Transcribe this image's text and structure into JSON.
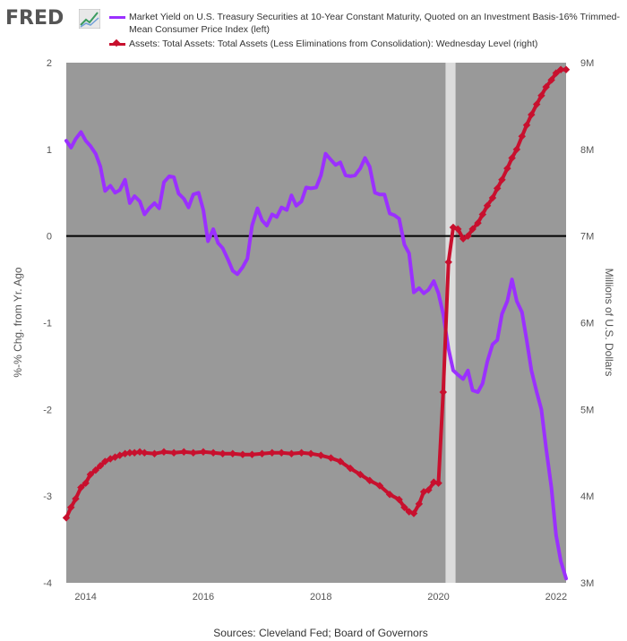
{
  "branding": {
    "logo_text": "FRED"
  },
  "legend": [
    {
      "label": "Market Yield on U.S. Treasury Securities at 10-Year Constant Maturity, Quoted on an Investment Basis-16% Trimmed-Mean Consumer Price Index (left)",
      "color": "#9b30ff"
    },
    {
      "label": "Assets: Total Assets: Total Assets (Less Eliminations from Consolidation): Wednesday Level (right)",
      "color": "#c8102e"
    }
  ],
  "source_text": "Sources: Cleveland Fed; Board of Governors",
  "chart_data": {
    "type": "line",
    "title": "",
    "left_axis": {
      "label": "%-% Chg. from Yr. Ago",
      "ticks": [
        "2",
        "1",
        "0",
        "-1",
        "-2",
        "-3",
        "-4"
      ],
      "ylim": [
        -4,
        2
      ]
    },
    "right_axis": {
      "label": "Millions of U.S. Dollars",
      "ticks": [
        "9M",
        "8M",
        "7M",
        "6M",
        "5M",
        "4M",
        "3M"
      ],
      "ylim": [
        3,
        9
      ]
    },
    "x_ticks": [
      "2014",
      "2016",
      "2018",
      "2020",
      "2022"
    ],
    "x_tick_years": [
      2014,
      2016,
      2018,
      2020,
      2022
    ],
    "xlim": [
      2013.67,
      2022.17
    ],
    "recession_shading": [
      2020.12,
      2020.29
    ],
    "background": "#999999",
    "grid": false,
    "zero_line": 0,
    "series": [
      {
        "name": "Market Yield on U.S. Treasury Securities at 10-Year Constant Maturity, Quoted on an Investment Basis-16% Trimmed-Mean Consumer Price Index (left)",
        "axis": "left",
        "color": "#9b30ff",
        "x": [
          2013.67,
          2013.75,
          2013.83,
          2013.92,
          2014.0,
          2014.08,
          2014.17,
          2014.25,
          2014.33,
          2014.42,
          2014.5,
          2014.58,
          2014.67,
          2014.75,
          2014.83,
          2014.92,
          2015.0,
          2015.08,
          2015.17,
          2015.25,
          2015.33,
          2015.42,
          2015.5,
          2015.58,
          2015.67,
          2015.75,
          2015.83,
          2015.92,
          2016.0,
          2016.08,
          2016.17,
          2016.25,
          2016.33,
          2016.42,
          2016.5,
          2016.58,
          2016.67,
          2016.75,
          2016.83,
          2016.92,
          2017.0,
          2017.08,
          2017.17,
          2017.25,
          2017.33,
          2017.42,
          2017.5,
          2017.58,
          2017.67,
          2017.75,
          2017.83,
          2017.92,
          2018.0,
          2018.08,
          2018.17,
          2018.25,
          2018.33,
          2018.42,
          2018.5,
          2018.58,
          2018.67,
          2018.75,
          2018.83,
          2018.92,
          2019.0,
          2019.08,
          2019.17,
          2019.25,
          2019.33,
          2019.42,
          2019.5,
          2019.58,
          2019.67,
          2019.75,
          2019.83,
          2019.92,
          2020.0,
          2020.08,
          2020.17,
          2020.25,
          2020.33,
          2020.42,
          2020.5,
          2020.58,
          2020.67,
          2020.75,
          2020.83,
          2020.92,
          2021.0,
          2021.08,
          2021.17,
          2021.25,
          2021.33,
          2021.42,
          2021.5,
          2021.58,
          2021.67,
          2021.75,
          2021.83,
          2021.92,
          2022.0,
          2022.08,
          2022.17
        ],
        "y": [
          1.1,
          1.02,
          1.12,
          1.2,
          1.1,
          1.04,
          0.95,
          0.8,
          0.52,
          0.58,
          0.5,
          0.53,
          0.65,
          0.38,
          0.46,
          0.4,
          0.25,
          0.32,
          0.38,
          0.32,
          0.62,
          0.69,
          0.68,
          0.49,
          0.43,
          0.33,
          0.48,
          0.5,
          0.3,
          -0.06,
          0.08,
          -0.08,
          -0.14,
          -0.27,
          -0.4,
          -0.44,
          -0.36,
          -0.26,
          0.12,
          0.32,
          0.18,
          0.12,
          0.25,
          0.22,
          0.33,
          0.3,
          0.47,
          0.35,
          0.4,
          0.56,
          0.55,
          0.56,
          0.7,
          0.95,
          0.88,
          0.82,
          0.85,
          0.7,
          0.69,
          0.7,
          0.78,
          0.9,
          0.8,
          0.5,
          0.48,
          0.48,
          0.26,
          0.24,
          0.2,
          -0.1,
          -0.2,
          -0.65,
          -0.6,
          -0.66,
          -0.62,
          -0.52,
          -0.66,
          -0.9,
          -1.3,
          -1.55,
          -1.6,
          -1.65,
          -1.55,
          -1.78,
          -1.8,
          -1.7,
          -1.45,
          -1.25,
          -1.2,
          -0.9,
          -0.75,
          -0.5,
          -0.75,
          -0.88,
          -1.2,
          -1.55,
          -1.8,
          -2.0,
          -2.45,
          -2.9,
          -3.45,
          -3.75,
          -3.95
        ]
      },
      {
        "name": "Assets: Total Assets: Total Assets (Less Eliminations from Consolidation): Wednesday Level (right)",
        "axis": "right",
        "color": "#c8102e",
        "x": [
          2013.67,
          2013.75,
          2013.83,
          2013.92,
          2014.0,
          2014.08,
          2014.17,
          2014.25,
          2014.33,
          2014.42,
          2014.5,
          2014.58,
          2014.67,
          2014.75,
          2014.83,
          2014.92,
          2015.0,
          2015.17,
          2015.33,
          2015.5,
          2015.67,
          2015.83,
          2016.0,
          2016.17,
          2016.33,
          2016.5,
          2016.67,
          2016.83,
          2017.0,
          2017.17,
          2017.33,
          2017.5,
          2017.67,
          2017.83,
          2018.0,
          2018.17,
          2018.33,
          2018.5,
          2018.67,
          2018.83,
          2019.0,
          2019.17,
          2019.33,
          2019.42,
          2019.5,
          2019.58,
          2019.67,
          2019.75,
          2019.83,
          2019.92,
          2020.0,
          2020.08,
          2020.17,
          2020.25,
          2020.33,
          2020.42,
          2020.5,
          2020.58,
          2020.67,
          2020.75,
          2020.83,
          2020.92,
          2021.0,
          2021.08,
          2021.17,
          2021.25,
          2021.33,
          2021.42,
          2021.5,
          2021.58,
          2021.67,
          2021.75,
          2021.83,
          2021.92,
          2022.0,
          2022.08,
          2022.17
        ],
        "y": [
          3.75,
          3.87,
          3.97,
          4.1,
          4.15,
          4.25,
          4.3,
          4.35,
          4.4,
          4.43,
          4.45,
          4.47,
          4.49,
          4.5,
          4.5,
          4.51,
          4.5,
          4.49,
          4.51,
          4.5,
          4.51,
          4.5,
          4.51,
          4.5,
          4.49,
          4.49,
          4.48,
          4.48,
          4.49,
          4.5,
          4.5,
          4.49,
          4.5,
          4.49,
          4.47,
          4.44,
          4.4,
          4.32,
          4.25,
          4.18,
          4.12,
          4.02,
          3.96,
          3.87,
          3.82,
          3.8,
          3.91,
          4.05,
          4.07,
          4.16,
          4.15,
          5.2,
          6.7,
          7.1,
          7.08,
          6.97,
          7.0,
          7.08,
          7.15,
          7.25,
          7.35,
          7.44,
          7.55,
          7.65,
          7.78,
          7.9,
          8.0,
          8.15,
          8.28,
          8.4,
          8.52,
          8.62,
          8.72,
          8.8,
          8.88,
          8.92,
          8.92
        ]
      }
    ]
  }
}
